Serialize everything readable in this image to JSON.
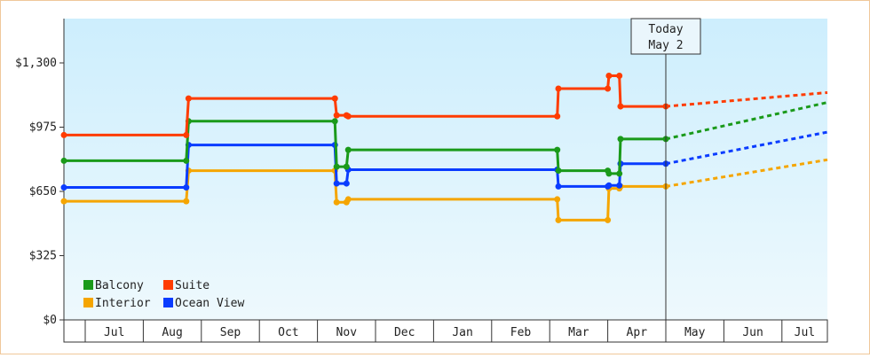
{
  "colors": {
    "balcony": "#1a9a1a",
    "suite": "#ff3c00",
    "interior": "#f5a500",
    "ocean_view": "#0a3cff",
    "plot_bg_top": "#cdeefd",
    "plot_bg_bottom": "#eef9fd"
  },
  "chart_data": {
    "type": "line",
    "title": "",
    "xlabel": "",
    "ylabel": "",
    "ylim": [
      0,
      1300
    ],
    "yticks": [
      0,
      325,
      650,
      975,
      1300
    ],
    "ytick_labels": [
      "$0",
      "$325",
      "$650",
      "$975",
      "$1,300"
    ],
    "xticks": [
      "Jul",
      "Aug",
      "Sep",
      "Oct",
      "Nov",
      "Dec",
      "Jan",
      "Feb",
      "Mar",
      "Apr",
      "May",
      "Jun",
      "Jul"
    ],
    "xlim": [
      0,
      13
    ],
    "today": {
      "x": 10,
      "label_line1": "Today",
      "label_line2": "May 2"
    },
    "legend": {
      "position": "bottom-left"
    },
    "series": [
      {
        "name": "Balcony",
        "color_key": "balcony",
        "points": [
          [
            -0.4,
            805
          ],
          [
            1.74,
            805
          ],
          [
            1.78,
            1005
          ],
          [
            4.3,
            1005
          ],
          [
            4.33,
            775
          ],
          [
            4.5,
            775
          ],
          [
            4.53,
            860
          ],
          [
            8.13,
            860
          ],
          [
            8.15,
            755
          ],
          [
            9.0,
            755
          ],
          [
            9.02,
            740
          ],
          [
            9.2,
            740
          ],
          [
            9.22,
            915
          ],
          [
            10,
            915
          ]
        ],
        "markers": [
          [
            -0.4,
            805
          ],
          [
            1.74,
            805
          ],
          [
            1.78,
            1005
          ],
          [
            4.3,
            1005
          ],
          [
            4.33,
            775
          ],
          [
            4.5,
            775
          ],
          [
            4.53,
            860
          ],
          [
            8.13,
            860
          ],
          [
            8.15,
            755
          ],
          [
            9.0,
            755
          ],
          [
            9.02,
            740
          ],
          [
            9.2,
            740
          ],
          [
            9.22,
            915
          ],
          [
            10,
            915
          ]
        ],
        "forecast": [
          [
            10,
            915
          ],
          [
            13.3,
            1100
          ]
        ]
      },
      {
        "name": "Suite",
        "color_key": "suite",
        "points": [
          [
            -0.4,
            935
          ],
          [
            1.74,
            935
          ],
          [
            1.78,
            1120
          ],
          [
            4.3,
            1120
          ],
          [
            4.33,
            1035
          ],
          [
            4.5,
            1035
          ],
          [
            4.53,
            1030
          ],
          [
            8.13,
            1030
          ],
          [
            8.15,
            1170
          ],
          [
            9.0,
            1170
          ],
          [
            9.02,
            1235
          ],
          [
            9.2,
            1235
          ],
          [
            9.22,
            1080
          ],
          [
            10,
            1080
          ]
        ],
        "markers": [
          [
            -0.4,
            935
          ],
          [
            1.74,
            935
          ],
          [
            1.78,
            1120
          ],
          [
            4.3,
            1120
          ],
          [
            4.33,
            1035
          ],
          [
            4.5,
            1035
          ],
          [
            4.53,
            1030
          ],
          [
            8.13,
            1030
          ],
          [
            8.15,
            1170
          ],
          [
            9.0,
            1170
          ],
          [
            9.02,
            1235
          ],
          [
            9.2,
            1235
          ],
          [
            9.22,
            1080
          ],
          [
            10,
            1080
          ]
        ],
        "forecast": [
          [
            10,
            1080
          ],
          [
            13.3,
            1150
          ]
        ]
      },
      {
        "name": "Interior",
        "color_key": "interior",
        "points": [
          [
            -0.4,
            600
          ],
          [
            1.74,
            600
          ],
          [
            1.78,
            755
          ],
          [
            4.3,
            755
          ],
          [
            4.33,
            595
          ],
          [
            4.5,
            595
          ],
          [
            4.53,
            610
          ],
          [
            8.13,
            610
          ],
          [
            8.15,
            505
          ],
          [
            9.0,
            505
          ],
          [
            9.02,
            665
          ],
          [
            9.2,
            665
          ],
          [
            9.22,
            675
          ],
          [
            10,
            675
          ]
        ],
        "markers": [
          [
            -0.4,
            600
          ],
          [
            1.74,
            600
          ],
          [
            1.78,
            755
          ],
          [
            4.3,
            755
          ],
          [
            4.33,
            595
          ],
          [
            4.5,
            595
          ],
          [
            4.53,
            610
          ],
          [
            8.13,
            610
          ],
          [
            8.15,
            505
          ],
          [
            9.0,
            505
          ],
          [
            9.02,
            665
          ],
          [
            9.2,
            665
          ],
          [
            9.22,
            675
          ],
          [
            10,
            675
          ]
        ],
        "forecast": [
          [
            10,
            675
          ],
          [
            13.3,
            810
          ]
        ]
      },
      {
        "name": "Ocean View",
        "color_key": "ocean_view",
        "points": [
          [
            -0.4,
            670
          ],
          [
            1.74,
            670
          ],
          [
            1.78,
            885
          ],
          [
            4.3,
            885
          ],
          [
            4.33,
            690
          ],
          [
            4.5,
            690
          ],
          [
            4.53,
            760
          ],
          [
            8.13,
            760
          ],
          [
            8.15,
            675
          ],
          [
            9.0,
            675
          ],
          [
            9.02,
            680
          ],
          [
            9.2,
            680
          ],
          [
            9.22,
            790
          ],
          [
            10,
            790
          ]
        ],
        "markers": [
          [
            -0.4,
            670
          ],
          [
            1.74,
            670
          ],
          [
            1.78,
            885
          ],
          [
            4.3,
            885
          ],
          [
            4.33,
            690
          ],
          [
            4.5,
            690
          ],
          [
            4.53,
            760
          ],
          [
            8.13,
            760
          ],
          [
            8.15,
            675
          ],
          [
            9.0,
            675
          ],
          [
            9.02,
            680
          ],
          [
            9.2,
            680
          ],
          [
            9.22,
            790
          ],
          [
            10,
            790
          ]
        ],
        "forecast": [
          [
            10,
            790
          ],
          [
            13.3,
            950
          ]
        ]
      }
    ]
  }
}
